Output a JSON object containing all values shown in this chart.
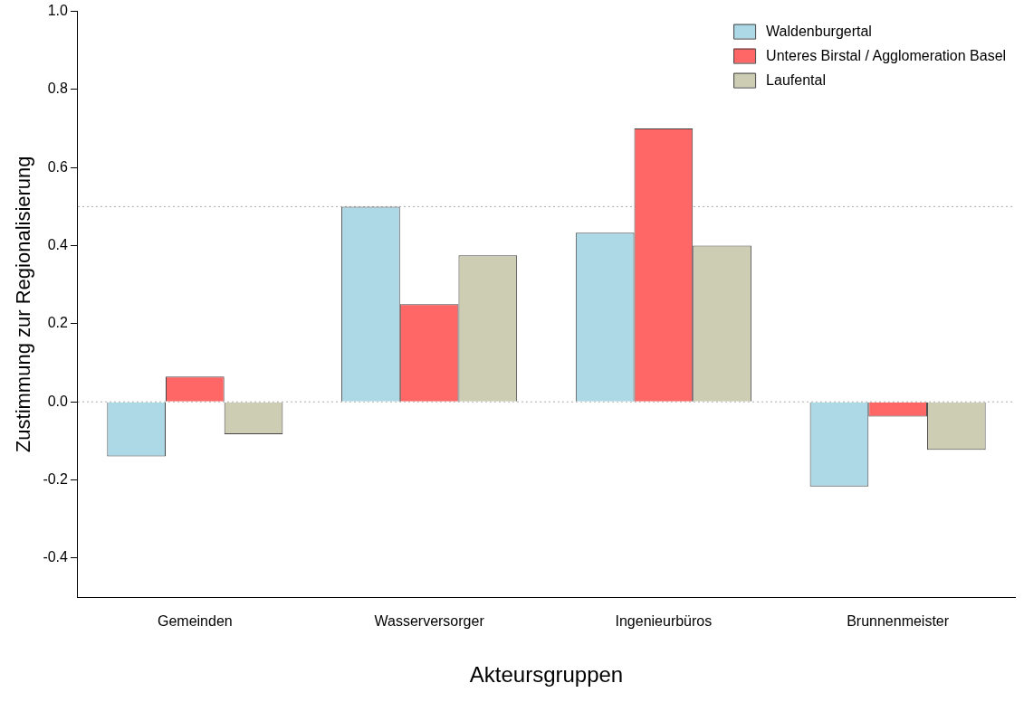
{
  "chart_data": {
    "type": "bar",
    "xlabel": "Akteursgruppen",
    "ylabel": "Zustimmung zur Regionalisierung",
    "categories": [
      "Gemeinden",
      "Wasserversorger",
      "Ingenieurbüros",
      "Brunnenmeister"
    ],
    "series": [
      {
        "name": "Waldenburgertal",
        "color": "#add8e6",
        "values": [
          -0.14,
          0.5,
          0.433,
          -0.217
        ]
      },
      {
        "name": "Unteres Birstal / Agglomeration Basel",
        "color": "#ff6666",
        "values": [
          0.065,
          0.25,
          0.7,
          -0.038
        ]
      },
      {
        "name": "Laufental",
        "color": "#cdcdb4",
        "values": [
          -0.083,
          0.375,
          0.4,
          -0.123
        ]
      }
    ],
    "ylim": [
      -0.5,
      1.0
    ],
    "yticks": [
      -0.4,
      -0.2,
      {
        "value": 0,
        "label": "0.0"
      },
      0.2,
      0.4,
      0.6,
      0.8,
      {
        "value": 1,
        "label": "1.0"
      }
    ],
    "ref_lines": [
      {
        "axis": "y",
        "value": 0.5,
        "color": "#aaaaaa",
        "line_style": "dotted"
      },
      {
        "axis": "y",
        "value": 0,
        "color": "#aaaaaa",
        "line_style": "dotted"
      }
    ],
    "grid": false,
    "legend": "top right"
  }
}
